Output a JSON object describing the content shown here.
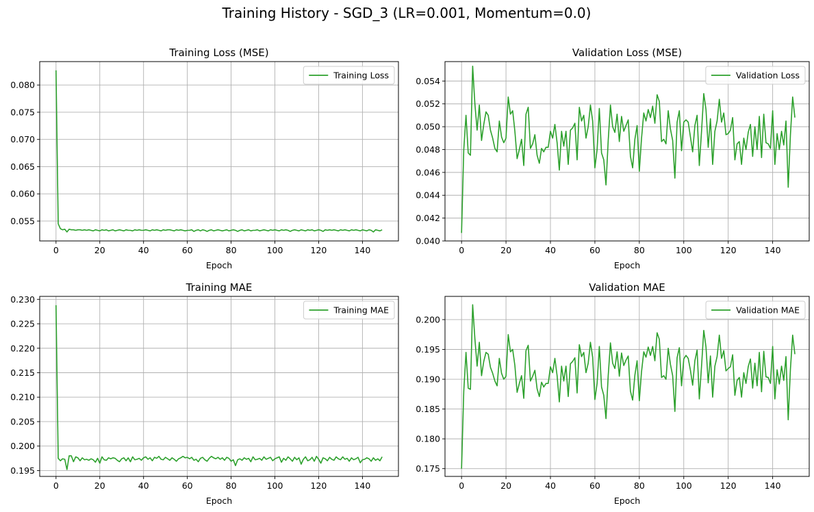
{
  "figure": {
    "title": "Training History - SGD_3 (LR=0.001, Momentum=0.0)"
  },
  "chart_data": [
    {
      "type": "line",
      "title": "Training Loss (MSE)",
      "xlabel": "Epoch",
      "ylabel": "",
      "xlim": [
        -7.45,
        156.45
      ],
      "ylim": [
        0.05135,
        0.0843
      ],
      "xticks": [
        "0",
        "20",
        "40",
        "60",
        "80",
        "100",
        "120",
        "140"
      ],
      "yticks": [
        "0.055",
        "0.060",
        "0.065",
        "0.070",
        "0.075",
        "0.080"
      ],
      "grid": true,
      "legend": "top-right",
      "series": [
        {
          "name": "Training Loss",
          "color": "#2ca02c",
          "x_start": 0,
          "values": [
            0.0827,
            0.0545,
            0.0536,
            0.0534,
            0.0535,
            0.053,
            0.0535,
            0.0534,
            0.0534,
            0.0533,
            0.0534,
            0.0534,
            0.0533,
            0.0534,
            0.0533,
            0.0534,
            0.0533,
            0.0532,
            0.0534,
            0.0533,
            0.0532,
            0.0534,
            0.0533,
            0.0534,
            0.0532,
            0.0533,
            0.0534,
            0.0532,
            0.0533,
            0.0534,
            0.0533,
            0.0532,
            0.0534,
            0.0533,
            0.0533,
            0.0532,
            0.0534,
            0.0533,
            0.0534,
            0.0533,
            0.0533,
            0.0534,
            0.0533,
            0.0532,
            0.0534,
            0.0533,
            0.0534,
            0.0533,
            0.0532,
            0.0534,
            0.0533,
            0.0534,
            0.0534,
            0.0533,
            0.0532,
            0.0534,
            0.0533,
            0.0534,
            0.0533,
            0.0532,
            0.0533,
            0.0533,
            0.0534,
            0.0531,
            0.0533,
            0.0534,
            0.0532,
            0.0534,
            0.0533,
            0.0531,
            0.0533,
            0.0534,
            0.0532,
            0.0533,
            0.0534,
            0.0533,
            0.0532,
            0.0533,
            0.0534,
            0.0532,
            0.0533,
            0.0534,
            0.0533,
            0.0531,
            0.0533,
            0.0534,
            0.0532,
            0.0533,
            0.0534,
            0.0532,
            0.0533,
            0.0533,
            0.0534,
            0.0532,
            0.0533,
            0.0534,
            0.0533,
            0.0532,
            0.0534,
            0.0533,
            0.0534,
            0.0533,
            0.0532,
            0.0534,
            0.0533,
            0.0534,
            0.0533,
            0.0531,
            0.0533,
            0.0534,
            0.0533,
            0.0532,
            0.0534,
            0.0533,
            0.0532,
            0.0534,
            0.0533,
            0.0534,
            0.0532,
            0.0533,
            0.0534,
            0.0533,
            0.0531,
            0.0534,
            0.0533,
            0.0534,
            0.0533,
            0.0534,
            0.0533,
            0.0532,
            0.0534,
            0.0533,
            0.0534,
            0.0533,
            0.0532,
            0.0534,
            0.0533,
            0.0534,
            0.0533,
            0.0532,
            0.0534,
            0.0533,
            0.0532,
            0.0534,
            0.0533,
            0.053,
            0.0534,
            0.0533,
            0.0532,
            0.0534
          ]
        }
      ]
    },
    {
      "type": "line",
      "title": "Validation Loss (MSE)",
      "xlabel": "Epoch",
      "ylabel": "",
      "xlim": [
        -7.45,
        156.45
      ],
      "ylim": [
        0.04,
        0.0557
      ],
      "xticks": [
        "0",
        "20",
        "40",
        "60",
        "80",
        "100",
        "120",
        "140"
      ],
      "yticks": [
        "0.040",
        "0.042",
        "0.044",
        "0.046",
        "0.048",
        "0.050",
        "0.052",
        "0.054"
      ],
      "grid": true,
      "legend": "top-right",
      "series": [
        {
          "name": "Validation Loss",
          "color": "#2ca02c",
          "x_start": 0,
          "values": [
            0.0407,
            0.048,
            0.051,
            0.0477,
            0.0475,
            0.0553,
            0.052,
            0.0497,
            0.0519,
            0.0488,
            0.0502,
            0.0513,
            0.051,
            0.0497,
            0.049,
            0.0481,
            0.0478,
            0.0505,
            0.0491,
            0.0486,
            0.049,
            0.0526,
            0.0511,
            0.0514,
            0.0496,
            0.0472,
            0.048,
            0.0489,
            0.0466,
            0.0511,
            0.0517,
            0.0481,
            0.0485,
            0.0493,
            0.0475,
            0.0468,
            0.0481,
            0.0478,
            0.0482,
            0.0482,
            0.0496,
            0.049,
            0.0502,
            0.0486,
            0.0462,
            0.0496,
            0.0483,
            0.0496,
            0.0467,
            0.0497,
            0.0499,
            0.0503,
            0.0471,
            0.0517,
            0.0505,
            0.051,
            0.049,
            0.05,
            0.0519,
            0.0505,
            0.0464,
            0.048,
            0.0516,
            0.0477,
            0.0471,
            0.0449,
            0.0488,
            0.0519,
            0.05,
            0.0495,
            0.0511,
            0.0487,
            0.0509,
            0.0496,
            0.0501,
            0.0506,
            0.0474,
            0.0464,
            0.0489,
            0.0501,
            0.0461,
            0.049,
            0.0512,
            0.0505,
            0.0515,
            0.0508,
            0.0518,
            0.0503,
            0.0528,
            0.0522,
            0.0487,
            0.0489,
            0.0485,
            0.0514,
            0.0498,
            0.0488,
            0.0455,
            0.0504,
            0.0514,
            0.0479,
            0.0504,
            0.0506,
            0.0504,
            0.0491,
            0.0478,
            0.0501,
            0.051,
            0.0466,
            0.0496,
            0.0529,
            0.0515,
            0.0482,
            0.0507,
            0.0467,
            0.0496,
            0.0505,
            0.0524,
            0.0504,
            0.0512,
            0.0493,
            0.0494,
            0.0497,
            0.0508,
            0.0471,
            0.0485,
            0.0487,
            0.0467,
            0.049,
            0.048,
            0.0495,
            0.0502,
            0.0474,
            0.05,
            0.048,
            0.0509,
            0.0473,
            0.0511,
            0.0486,
            0.0485,
            0.0481,
            0.0514,
            0.0467,
            0.0494,
            0.048,
            0.0496,
            0.0484,
            0.0505,
            0.0447,
            0.0493,
            0.0526,
            0.0508
          ]
        }
      ]
    },
    {
      "type": "line",
      "title": "Training MAE",
      "xlabel": "Epoch",
      "ylabel": "",
      "xlim": [
        -7.45,
        156.45
      ],
      "ylim": [
        0.1938,
        0.2306
      ],
      "xticks": [
        "0",
        "20",
        "40",
        "60",
        "80",
        "100",
        "120",
        "140"
      ],
      "yticks": [
        "0.195",
        "0.200",
        "0.205",
        "0.210",
        "0.215",
        "0.220",
        "0.225",
        "0.230"
      ],
      "grid": true,
      "legend": "top-right",
      "series": [
        {
          "name": "Training MAE",
          "color": "#2ca02c",
          "x_start": 0,
          "values": [
            0.2288,
            0.1975,
            0.197,
            0.1974,
            0.1973,
            0.1952,
            0.198,
            0.198,
            0.1968,
            0.1978,
            0.1976,
            0.197,
            0.1976,
            0.1972,
            0.1973,
            0.1971,
            0.1974,
            0.1972,
            0.1967,
            0.1975,
            0.1965,
            0.1978,
            0.1972,
            0.1971,
            0.1976,
            0.1974,
            0.1976,
            0.1975,
            0.1971,
            0.1968,
            0.1974,
            0.1976,
            0.197,
            0.1976,
            0.1968,
            0.1978,
            0.1972,
            0.1973,
            0.1975,
            0.1971,
            0.1976,
            0.1978,
            0.1973,
            0.1976,
            0.197,
            0.1977,
            0.1975,
            0.1979,
            0.1973,
            0.1972,
            0.1977,
            0.1974,
            0.1971,
            0.1976,
            0.1973,
            0.1969,
            0.1974,
            0.1976,
            0.1979,
            0.1976,
            0.1977,
            0.1974,
            0.1977,
            0.1971,
            0.1973,
            0.1968,
            0.1975,
            0.1977,
            0.1972,
            0.1969,
            0.1975,
            0.1979,
            0.1976,
            0.1974,
            0.1977,
            0.1973,
            0.1976,
            0.1971,
            0.1977,
            0.1975,
            0.1969,
            0.1972,
            0.196,
            0.1972,
            0.1974,
            0.1971,
            0.1976,
            0.1973,
            0.1975,
            0.1968,
            0.1978,
            0.1972,
            0.1973,
            0.1975,
            0.1971,
            0.1978,
            0.1973,
            0.1975,
            0.1977,
            0.197,
            0.1974,
            0.1976,
            0.1978,
            0.1967,
            0.1975,
            0.1971,
            0.1978,
            0.1974,
            0.1969,
            0.1977,
            0.1972,
            0.1976,
            0.1963,
            0.1973,
            0.1978,
            0.197,
            0.1972,
            0.1977,
            0.1969,
            0.1979,
            0.1973,
            0.1965,
            0.1976,
            0.1974,
            0.197,
            0.1977,
            0.1973,
            0.1971,
            0.1978,
            0.1974,
            0.1972,
            0.1978,
            0.1973,
            0.1975,
            0.1969,
            0.1976,
            0.1972,
            0.1974,
            0.1977,
            0.1966,
            0.1972,
            0.1973,
            0.1976,
            0.1974,
            0.1969,
            0.1976,
            0.1971,
            0.1974,
            0.197,
            0.1978
          ]
        }
      ]
    },
    {
      "type": "line",
      "title": "Validation MAE",
      "xlabel": "Epoch",
      "ylabel": "",
      "xlim": [
        -7.45,
        156.45
      ],
      "ylim": [
        0.1737,
        0.2039
      ],
      "xticks": [
        "0",
        "20",
        "40",
        "60",
        "80",
        "100",
        "120",
        "140"
      ],
      "yticks": [
        "0.175",
        "0.180",
        "0.185",
        "0.190",
        "0.195",
        "0.200"
      ],
      "grid": true,
      "legend": "top-right",
      "series": [
        {
          "name": "Validation MAE",
          "color": "#2ca02c",
          "x_start": 0,
          "values": [
            0.175,
            0.188,
            0.1945,
            0.1885,
            0.1883,
            0.2025,
            0.1968,
            0.1922,
            0.1962,
            0.1906,
            0.193,
            0.1945,
            0.1942,
            0.192,
            0.191,
            0.1897,
            0.1889,
            0.1935,
            0.191,
            0.19,
            0.1905,
            0.1975,
            0.1946,
            0.195,
            0.1923,
            0.1878,
            0.1893,
            0.1906,
            0.1868,
            0.1948,
            0.1957,
            0.1897,
            0.1905,
            0.1915,
            0.1884,
            0.1871,
            0.1895,
            0.1887,
            0.1893,
            0.1893,
            0.1921,
            0.1911,
            0.1935,
            0.1906,
            0.1862,
            0.1922,
            0.1897,
            0.1922,
            0.1871,
            0.1926,
            0.193,
            0.1936,
            0.1877,
            0.1958,
            0.1938,
            0.1945,
            0.1911,
            0.1927,
            0.1962,
            0.1937,
            0.1866,
            0.1893,
            0.1955,
            0.1887,
            0.1873,
            0.1834,
            0.1906,
            0.1961,
            0.1927,
            0.1918,
            0.1946,
            0.1905,
            0.1944,
            0.1923,
            0.1932,
            0.1939,
            0.188,
            0.1865,
            0.1907,
            0.1931,
            0.1864,
            0.1913,
            0.1946,
            0.1937,
            0.1954,
            0.194,
            0.1955,
            0.1931,
            0.1978,
            0.1967,
            0.1903,
            0.1906,
            0.19,
            0.1952,
            0.1925,
            0.1906,
            0.1846,
            0.1936,
            0.1953,
            0.1889,
            0.1934,
            0.194,
            0.1935,
            0.1915,
            0.189,
            0.1931,
            0.1949,
            0.1867,
            0.1922,
            0.1982,
            0.1954,
            0.1894,
            0.1939,
            0.187,
            0.1922,
            0.1938,
            0.1974,
            0.1935,
            0.1948,
            0.1914,
            0.1918,
            0.1921,
            0.1941,
            0.1873,
            0.1898,
            0.1903,
            0.187,
            0.1911,
            0.1893,
            0.1921,
            0.1934,
            0.1885,
            0.1927,
            0.1889,
            0.1945,
            0.1879,
            0.1947,
            0.1904,
            0.1903,
            0.1893,
            0.1955,
            0.1867,
            0.1916,
            0.1892,
            0.1922,
            0.1898,
            0.1938,
            0.1832,
            0.1917,
            0.1974,
            0.1942
          ]
        }
      ]
    }
  ]
}
